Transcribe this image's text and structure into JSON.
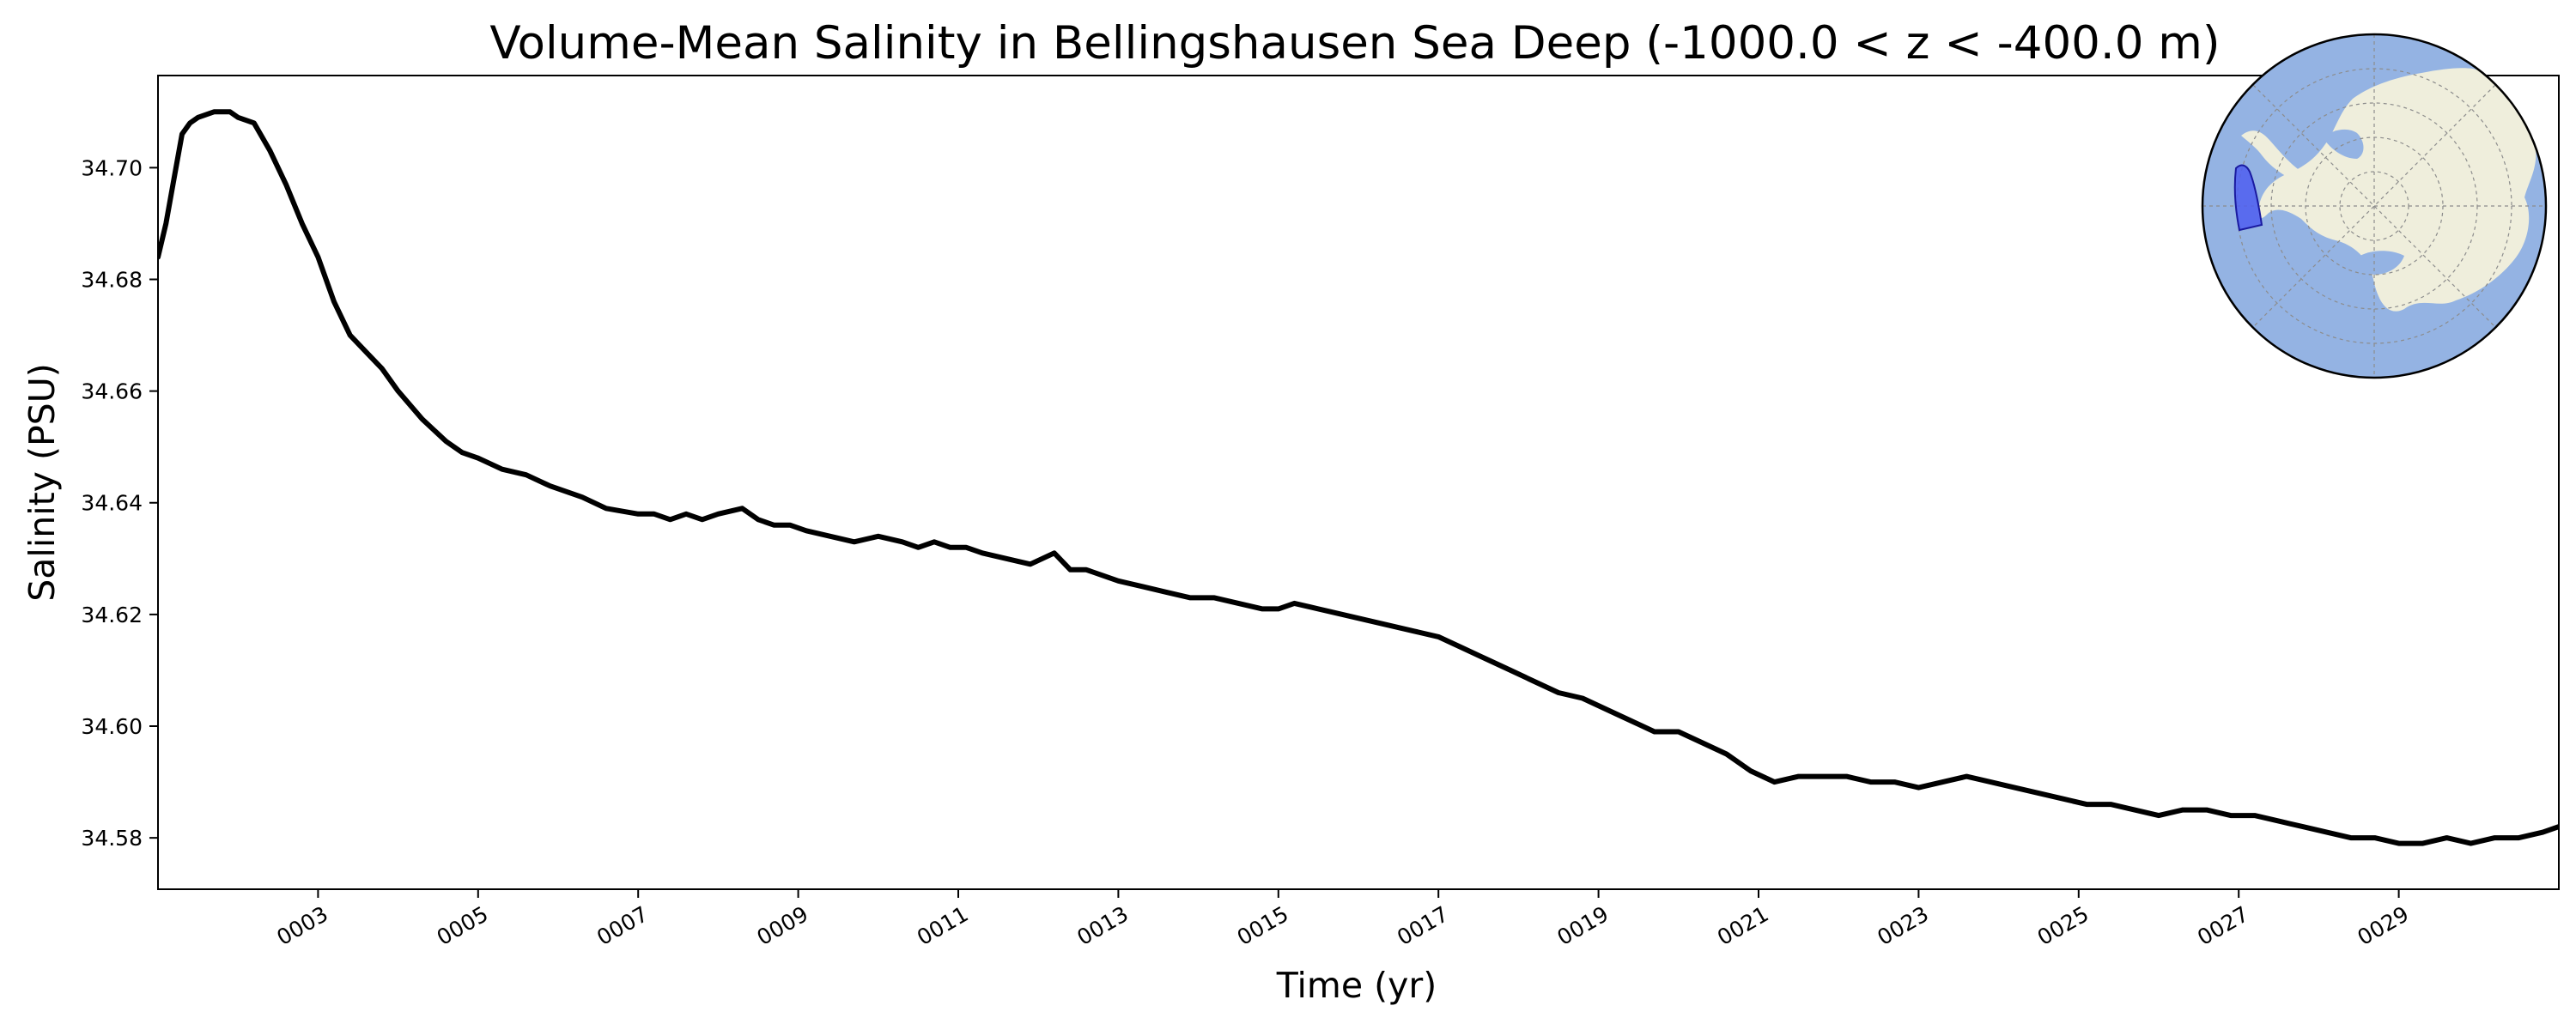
{
  "chart_data": {
    "type": "line",
    "title": "Volume-Mean Salinity in Bellingshausen Sea Deep (-1000.0 < z < -400.0 m)",
    "xlabel": "Time (yr)",
    "ylabel": "Salinity (PSU)",
    "xlim": [
      1.0,
      31.0
    ],
    "ylim": [
      34.5708,
      34.7165
    ],
    "grid": false,
    "xticks": [
      3,
      5,
      7,
      9,
      11,
      13,
      15,
      17,
      19,
      21,
      23,
      25,
      27,
      29
    ],
    "xtick_labels": [
      "0003",
      "0005",
      "0007",
      "0009",
      "0011",
      "0013",
      "0015",
      "0017",
      "0019",
      "0021",
      "0023",
      "0025",
      "0027",
      "0029"
    ],
    "yticks": [
      34.58,
      34.6,
      34.62,
      34.64,
      34.66,
      34.68,
      34.7
    ],
    "ytick_labels": [
      "34.58",
      "34.60",
      "34.62",
      "34.64",
      "34.66",
      "34.68",
      "34.70"
    ],
    "series": [
      {
        "name": "Bellingshausen Sea Deep",
        "color": "#000000",
        "x": [
          1.0,
          1.1,
          1.2,
          1.3,
          1.4,
          1.5,
          1.7,
          1.9,
          2.0,
          2.2,
          2.4,
          2.6,
          2.8,
          3.0,
          3.2,
          3.4,
          3.6,
          3.8,
          4.0,
          4.3,
          4.6,
          4.8,
          5.0,
          5.3,
          5.6,
          5.9,
          6.3,
          6.6,
          7.0,
          7.2,
          7.4,
          7.6,
          7.8,
          8.0,
          8.3,
          8.5,
          8.7,
          8.9,
          9.1,
          9.4,
          9.7,
          10.0,
          10.3,
          10.5,
          10.7,
          10.9,
          11.1,
          11.3,
          11.6,
          11.9,
          12.2,
          12.4,
          12.6,
          12.8,
          13.0,
          13.3,
          13.6,
          13.9,
          14.2,
          14.5,
          14.8,
          15.0,
          15.2,
          15.5,
          15.8,
          16.1,
          16.4,
          16.7,
          17.0,
          17.3,
          17.6,
          17.9,
          18.2,
          18.5,
          18.8,
          19.1,
          19.4,
          19.7,
          20.0,
          20.3,
          20.6,
          20.9,
          21.2,
          21.5,
          21.8,
          22.1,
          22.4,
          22.7,
          23.0,
          23.3,
          23.6,
          23.9,
          24.2,
          24.5,
          24.8,
          25.1,
          25.4,
          25.7,
          26.0,
          26.3,
          26.6,
          26.9,
          27.2,
          27.5,
          27.8,
          28.1,
          28.4,
          28.7,
          29.0,
          29.3,
          29.6,
          29.9,
          30.2,
          30.5,
          30.8,
          31.0
        ],
        "values": [
          34.684,
          34.69,
          34.698,
          34.706,
          34.708,
          34.709,
          34.71,
          34.71,
          34.709,
          34.708,
          34.703,
          34.697,
          34.69,
          34.684,
          34.676,
          34.67,
          34.667,
          34.664,
          34.66,
          34.655,
          34.651,
          34.649,
          34.648,
          34.646,
          34.645,
          34.643,
          34.641,
          34.639,
          34.638,
          34.638,
          34.637,
          34.638,
          34.637,
          34.638,
          34.639,
          34.637,
          34.636,
          34.636,
          34.635,
          34.634,
          34.633,
          34.634,
          34.633,
          34.632,
          34.633,
          34.632,
          34.632,
          34.631,
          34.63,
          34.629,
          34.631,
          34.628,
          34.628,
          34.627,
          34.626,
          34.625,
          34.624,
          34.623,
          34.623,
          34.622,
          34.621,
          34.621,
          34.622,
          34.621,
          34.62,
          34.619,
          34.618,
          34.617,
          34.616,
          34.614,
          34.612,
          34.61,
          34.608,
          34.606,
          34.605,
          34.603,
          34.601,
          34.599,
          34.599,
          34.597,
          34.595,
          34.592,
          34.59,
          34.591,
          34.591,
          34.591,
          34.59,
          34.59,
          34.589,
          34.59,
          34.591,
          34.59,
          34.589,
          34.588,
          34.587,
          34.586,
          34.586,
          34.585,
          34.584,
          34.585,
          34.585,
          34.584,
          34.584,
          34.583,
          34.582,
          34.581,
          34.58,
          34.58,
          34.579,
          34.579,
          34.58,
          34.579,
          34.58,
          34.58,
          34.581,
          34.582
        ]
      }
    ],
    "inset_map": {
      "description_label": "",
      "ocean_color": "#94b3e3",
      "land_color": "#efeedc",
      "region_color": "#4f5ef0"
    }
  }
}
